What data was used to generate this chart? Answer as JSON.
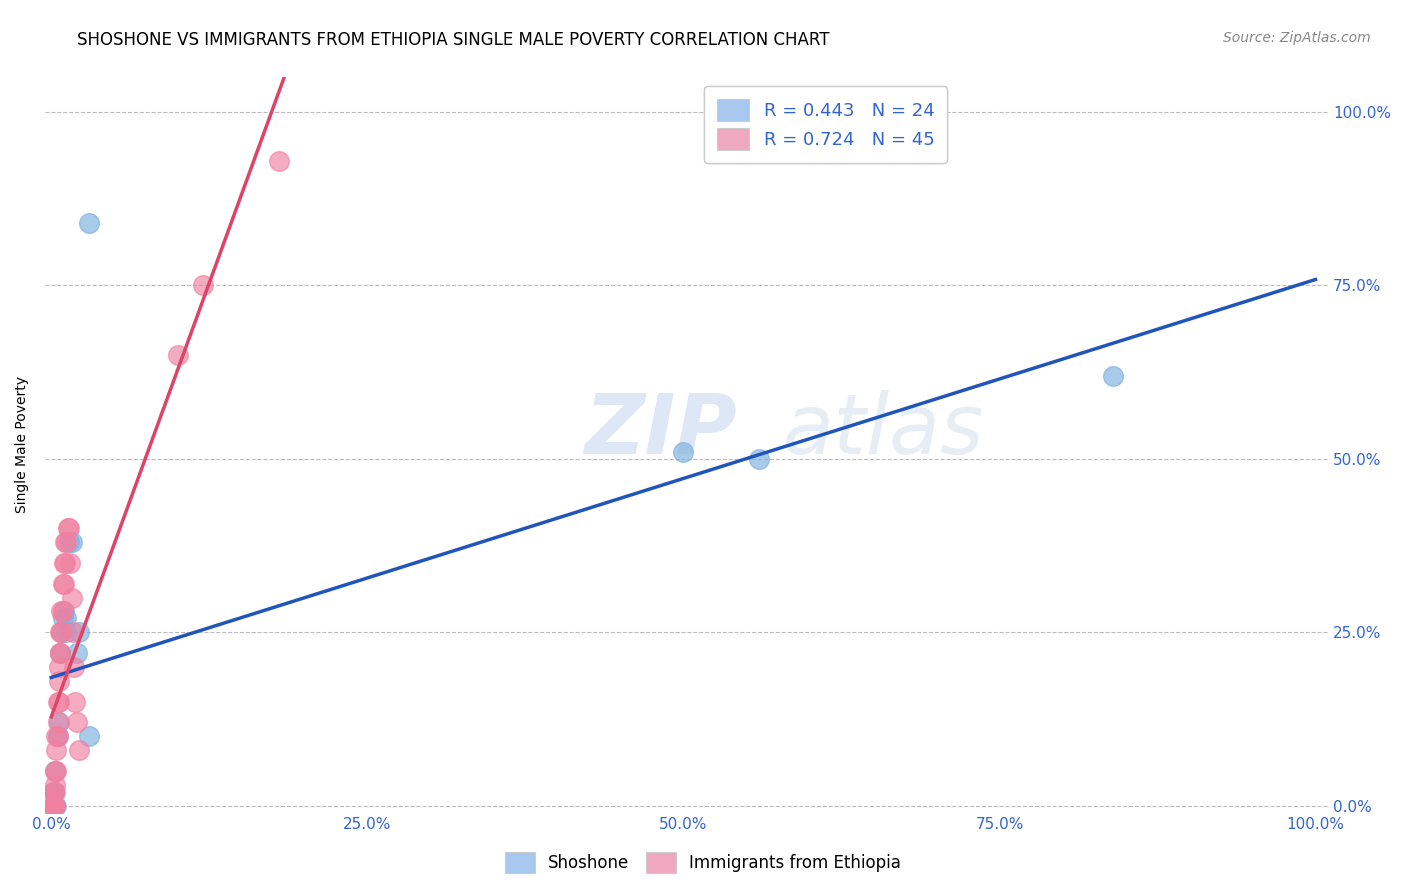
{
  "title": "SHOSHONE VS IMMIGRANTS FROM ETHIOPIA SINGLE MALE POVERTY CORRELATION CHART",
  "source": "Source: ZipAtlas.com",
  "ylabel": "Single Male Poverty",
  "ytick_labels": [
    "0.0%",
    "25.0%",
    "50.0%",
    "75.0%",
    "100.0%"
  ],
  "ytick_values": [
    0,
    0.25,
    0.5,
    0.75,
    1.0
  ],
  "xtick_values": [
    0,
    0.25,
    0.5,
    0.75,
    1.0
  ],
  "watermark_zip": "ZIP",
  "watermark_atlas": "atlas",
  "legend_label1": "R = 0.443   N = 24",
  "legend_label2": "R = 0.724   N = 45",
  "legend_color1": "#a8c8f0",
  "legend_color2": "#f0a8c0",
  "shoshone_color": "#7ab0e0",
  "ethiopia_color": "#f080a0",
  "shoshone_line_color": "#2255bb",
  "ethiopia_line_color": "#dd4466",
  "background_color": "#ffffff",
  "grid_color": "#bbbbbb",
  "title_fontsize": 12,
  "axis_label_fontsize": 10,
  "tick_fontsize": 11,
  "source_fontsize": 10,
  "shoshone_points": [
    [
      0.001,
      0.0
    ],
    [
      0.002,
      0.0
    ],
    [
      0.003,
      0.0
    ],
    [
      0.004,
      0.0
    ],
    [
      0.001,
      0.02
    ],
    [
      0.002,
      0.02
    ],
    [
      0.003,
      0.05
    ],
    [
      0.005,
      0.1
    ],
    [
      0.006,
      0.12
    ],
    [
      0.007,
      0.22
    ],
    [
      0.008,
      0.25
    ],
    [
      0.009,
      0.27
    ],
    [
      0.01,
      0.28
    ],
    [
      0.012,
      0.25
    ],
    [
      0.012,
      0.27
    ],
    [
      0.014,
      0.38
    ],
    [
      0.016,
      0.38
    ],
    [
      0.02,
      0.22
    ],
    [
      0.022,
      0.25
    ],
    [
      0.03,
      0.1
    ],
    [
      0.5,
      0.51
    ],
    [
      0.56,
      0.5
    ],
    [
      0.84,
      0.62
    ],
    [
      0.03,
      0.84
    ]
  ],
  "ethiopia_points": [
    [
      0.001,
      0.0
    ],
    [
      0.001,
      0.0
    ],
    [
      0.001,
      0.0
    ],
    [
      0.002,
      0.0
    ],
    [
      0.002,
      0.0
    ],
    [
      0.002,
      0.0
    ],
    [
      0.002,
      0.0
    ],
    [
      0.002,
      0.0
    ],
    [
      0.002,
      0.02
    ],
    [
      0.003,
      0.02
    ],
    [
      0.003,
      0.03
    ],
    [
      0.003,
      0.05
    ],
    [
      0.004,
      0.05
    ],
    [
      0.004,
      0.08
    ],
    [
      0.004,
      0.1
    ],
    [
      0.005,
      0.1
    ],
    [
      0.005,
      0.12
    ],
    [
      0.005,
      0.15
    ],
    [
      0.006,
      0.15
    ],
    [
      0.006,
      0.18
    ],
    [
      0.006,
      0.2
    ],
    [
      0.007,
      0.22
    ],
    [
      0.007,
      0.22
    ],
    [
      0.007,
      0.25
    ],
    [
      0.008,
      0.25
    ],
    [
      0.008,
      0.28
    ],
    [
      0.009,
      0.28
    ],
    [
      0.009,
      0.32
    ],
    [
      0.01,
      0.32
    ],
    [
      0.01,
      0.35
    ],
    [
      0.011,
      0.35
    ],
    [
      0.011,
      0.38
    ],
    [
      0.012,
      0.38
    ],
    [
      0.013,
      0.4
    ],
    [
      0.014,
      0.4
    ],
    [
      0.015,
      0.35
    ],
    [
      0.016,
      0.3
    ],
    [
      0.017,
      0.25
    ],
    [
      0.018,
      0.2
    ],
    [
      0.019,
      0.15
    ],
    [
      0.02,
      0.12
    ],
    [
      0.022,
      0.08
    ],
    [
      0.1,
      0.65
    ],
    [
      0.12,
      0.75
    ],
    [
      0.18,
      0.93
    ]
  ]
}
